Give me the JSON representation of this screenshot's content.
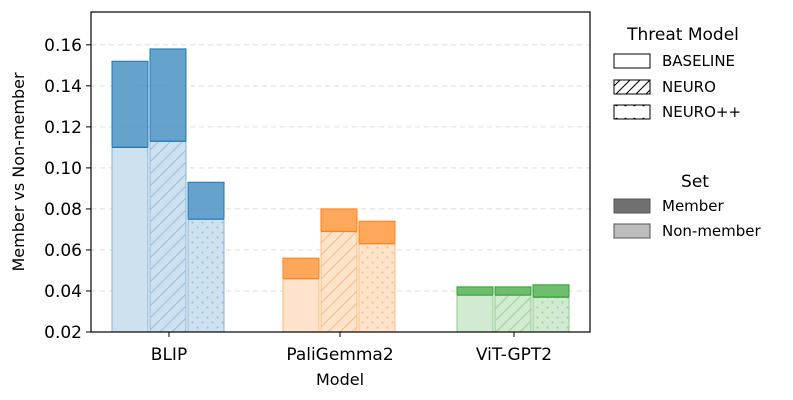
{
  "chart_data": {
    "type": "bar",
    "xlabel": "Model",
    "ylabel": "Member vs Non-member",
    "ylim": [
      0.02,
      0.176
    ],
    "yticks": [
      0.02,
      0.04,
      0.06,
      0.08,
      0.1,
      0.12,
      0.14,
      0.16
    ],
    "ytick_labels": [
      "0.02",
      "0.04",
      "0.06",
      "0.08",
      "0.10",
      "0.12",
      "0.14",
      "0.16"
    ],
    "grid": "horizontal dashed",
    "categories": [
      "BLIP",
      "PaliGemma2",
      "ViT-GPT2"
    ],
    "threat_models": [
      "BASELINE",
      "NEURO",
      "NEURO++"
    ],
    "series": [
      {
        "model": "BLIP",
        "color": "#1f77b4",
        "member": [
          0.152,
          0.158,
          0.093
        ],
        "non_member": [
          0.11,
          0.113,
          0.075
        ]
      },
      {
        "model": "PaliGemma2",
        "color": "#ff7f0e",
        "member": [
          0.056,
          0.08,
          0.074
        ],
        "non_member": [
          0.046,
          0.069,
          0.063
        ]
      },
      {
        "model": "ViT-GPT2",
        "color": "#2ca02c",
        "member": [
          0.042,
          0.042,
          0.043
        ],
        "non_member": [
          0.038,
          0.038,
          0.037
        ]
      }
    ],
    "legend_threat": {
      "title": "Threat Model",
      "entries": [
        {
          "label": "BASELINE",
          "hatch": "none"
        },
        {
          "label": "NEURO",
          "hatch": "diagonal"
        },
        {
          "label": "NEURO++",
          "hatch": "dots"
        }
      ]
    },
    "legend_set": {
      "title": "Set",
      "entries": [
        {
          "label": "Member",
          "color": "#707070"
        },
        {
          "label": "Non-member",
          "color": "#bdbdbd"
        }
      ]
    },
    "legend_position": "right"
  }
}
